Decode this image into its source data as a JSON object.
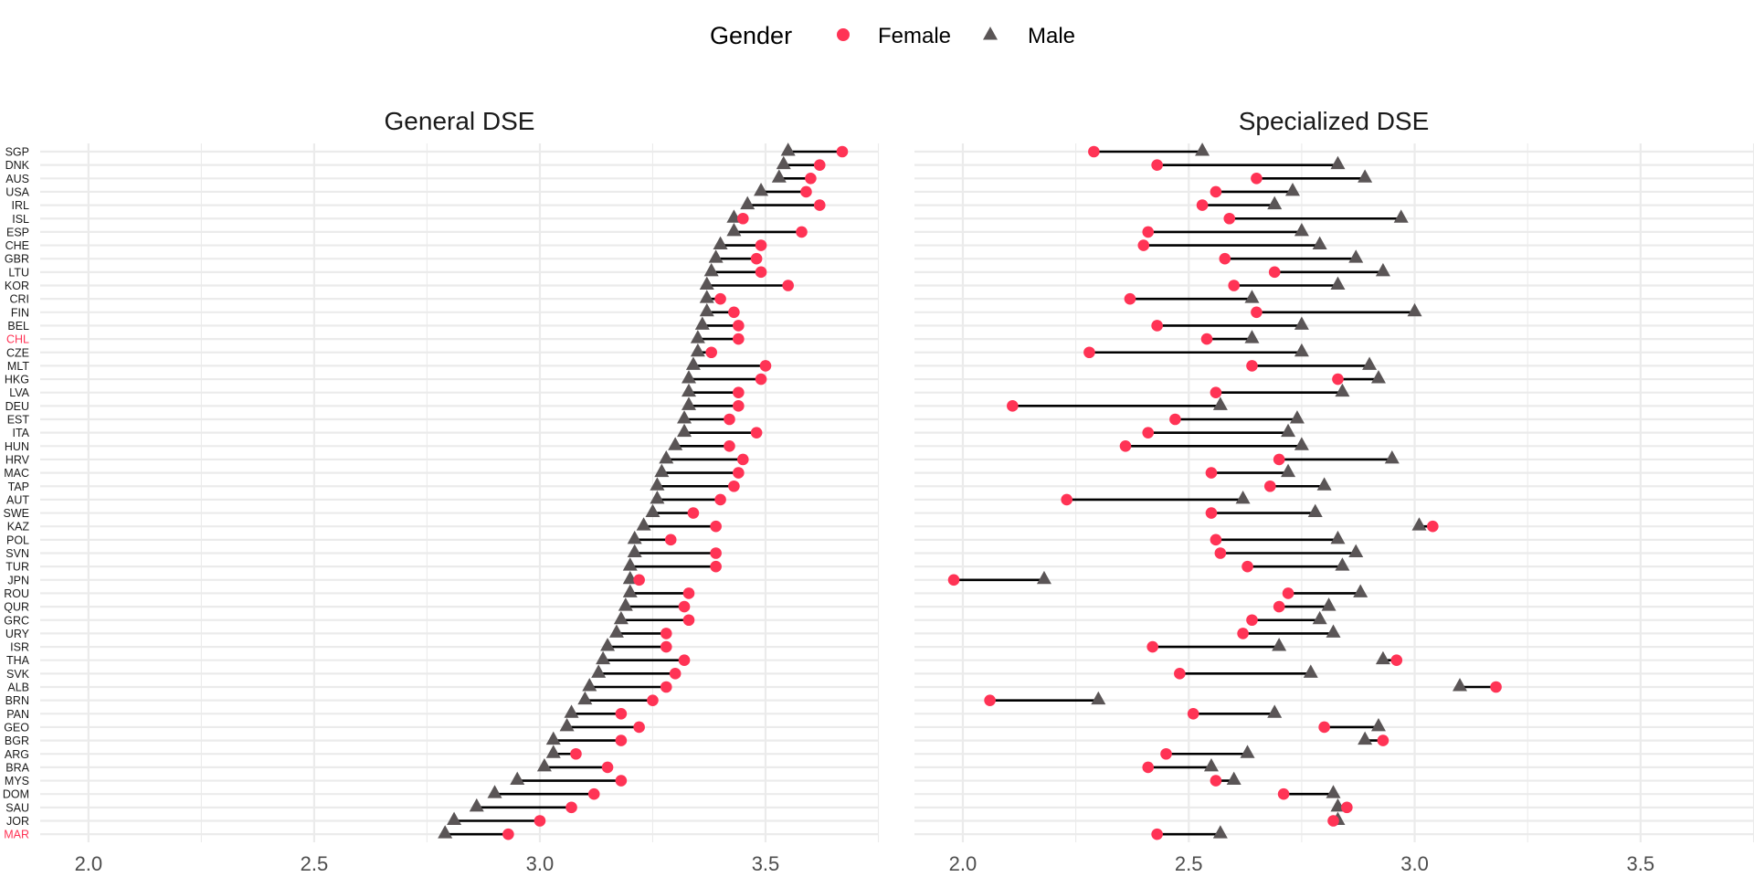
{
  "chart_data": {
    "type": "dumbbell",
    "legend": {
      "title": "Gender",
      "placement": "top",
      "entries": [
        {
          "name": "Female",
          "shape": "circle",
          "color": "#ff3355"
        },
        {
          "name": "Male",
          "shape": "triangle",
          "color": "#5a5556"
        }
      ]
    },
    "segment_color": "#000000",
    "grid": true,
    "xlim": [
      1.893,
      3.751
    ],
    "x_ticks": [
      2.0,
      2.5,
      3.0,
      3.5
    ],
    "x_tick_labels": [
      "2.0",
      "2.5",
      "3.0",
      "3.5"
    ],
    "x_minor_ticks": [
      2.25,
      2.75,
      3.25,
      3.75
    ],
    "categories": [
      "SGP",
      "DNK",
      "AUS",
      "USA",
      "IRL",
      "ISL",
      "ESP",
      "CHE",
      "GBR",
      "LTU",
      "KOR",
      "CRI",
      "FIN",
      "BEL",
      "CHL",
      "CZE",
      "MLT",
      "HKG",
      "LVA",
      "DEU",
      "EST",
      "ITA",
      "HUN",
      "HRV",
      "MAC",
      "TAP",
      "AUT",
      "SWE",
      "KAZ",
      "POL",
      "SVN",
      "TUR",
      "JPN",
      "ROU",
      "QUR",
      "GRC",
      "URY",
      "ISR",
      "THA",
      "SVK",
      "ALB",
      "BRN",
      "PAN",
      "GEO",
      "BGR",
      "ARG",
      "BRA",
      "MYS",
      "DOM",
      "SAU",
      "JOR",
      "MAR"
    ],
    "highlighted_categories": [
      "CHL",
      "MAR"
    ],
    "highlight_color": "#ff3355",
    "panels": [
      {
        "title": "General DSE",
        "series": [
          {
            "name": "Female",
            "values": [
              3.67,
              3.62,
              3.6,
              3.59,
              3.62,
              3.45,
              3.58,
              3.49,
              3.48,
              3.49,
              3.55,
              3.4,
              3.43,
              3.44,
              3.44,
              3.38,
              3.5,
              3.49,
              3.44,
              3.44,
              3.42,
              3.48,
              3.42,
              3.45,
              3.44,
              3.43,
              3.4,
              3.34,
              3.39,
              3.29,
              3.39,
              3.39,
              3.22,
              3.33,
              3.32,
              3.33,
              3.28,
              3.28,
              3.32,
              3.3,
              3.28,
              3.25,
              3.18,
              3.22,
              3.18,
              3.08,
              3.15,
              3.18,
              3.12,
              3.07,
              3.0,
              2.93
            ]
          },
          {
            "name": "Male",
            "values": [
              3.55,
              3.54,
              3.53,
              3.49,
              3.46,
              3.43,
              3.43,
              3.4,
              3.39,
              3.38,
              3.37,
              3.37,
              3.37,
              3.36,
              3.35,
              3.35,
              3.34,
              3.33,
              3.33,
              3.33,
              3.32,
              3.32,
              3.3,
              3.28,
              3.27,
              3.26,
              3.26,
              3.25,
              3.23,
              3.21,
              3.21,
              3.2,
              3.2,
              3.2,
              3.19,
              3.18,
              3.17,
              3.15,
              3.14,
              3.13,
              3.11,
              3.1,
              3.07,
              3.06,
              3.03,
              3.03,
              3.01,
              2.95,
              2.9,
              2.86,
              2.81,
              2.79
            ]
          }
        ]
      },
      {
        "title": "Specialized DSE",
        "series": [
          {
            "name": "Female",
            "values": [
              2.29,
              2.43,
              2.65,
              2.56,
              2.53,
              2.59,
              2.41,
              2.4,
              2.58,
              2.69,
              2.6,
              2.37,
              2.65,
              2.43,
              2.54,
              2.28,
              2.64,
              2.83,
              2.56,
              2.11,
              2.47,
              2.41,
              2.36,
              2.7,
              2.55,
              2.68,
              2.23,
              2.55,
              3.04,
              2.56,
              2.57,
              2.63,
              1.98,
              2.72,
              2.7,
              2.64,
              2.62,
              2.42,
              2.96,
              2.48,
              3.18,
              2.06,
              2.51,
              2.8,
              2.93,
              2.45,
              2.41,
              2.56,
              2.71,
              2.85,
              2.82,
              2.43
            ]
          },
          {
            "name": "Male",
            "values": [
              2.53,
              2.83,
              2.89,
              2.73,
              2.69,
              2.97,
              2.75,
              2.79,
              2.87,
              2.93,
              2.83,
              2.64,
              3.0,
              2.75,
              2.64,
              2.75,
              2.9,
              2.92,
              2.84,
              2.57,
              2.74,
              2.72,
              2.75,
              2.95,
              2.72,
              2.8,
              2.62,
              2.78,
              3.01,
              2.83,
              2.87,
              2.84,
              2.18,
              2.88,
              2.81,
              2.79,
              2.82,
              2.7,
              2.93,
              2.77,
              3.1,
              2.3,
              2.69,
              2.92,
              2.89,
              2.63,
              2.55,
              2.6,
              2.82,
              2.83,
              2.83,
              2.57
            ]
          }
        ]
      }
    ]
  }
}
